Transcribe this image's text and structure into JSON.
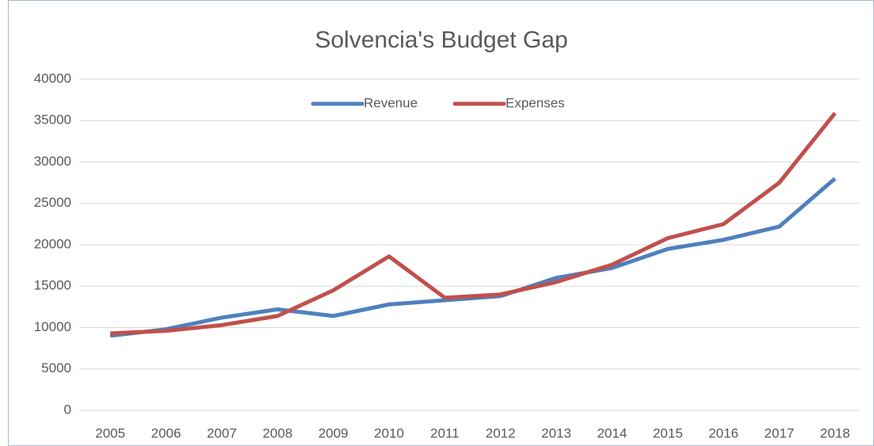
{
  "chart_data": {
    "type": "line",
    "title": "Solvencia's Budget Gap",
    "categories": [
      "2005",
      "2006",
      "2007",
      "2008",
      "2009",
      "2010",
      "2011",
      "2012",
      "2013",
      "2014",
      "2015",
      "2016",
      "2017",
      "2018"
    ],
    "series": [
      {
        "name": "Revenue",
        "color": "#4f81bd",
        "values": [
          9000,
          9800,
          11200,
          12200,
          11400,
          12800,
          13300,
          13800,
          16000,
          17200,
          19500,
          20600,
          22200,
          28000
        ]
      },
      {
        "name": "Expenses",
        "color": "#c0504d",
        "values": [
          9300,
          9600,
          10300,
          11400,
          14500,
          18600,
          13600,
          14000,
          15500,
          17600,
          20800,
          22500,
          27500,
          35900
        ]
      }
    ],
    "ylim": [
      0,
      40000
    ],
    "yticks": [
      0,
      5000,
      10000,
      15000,
      20000,
      25000,
      30000,
      35000,
      40000
    ],
    "grid": true,
    "legend": "top"
  }
}
